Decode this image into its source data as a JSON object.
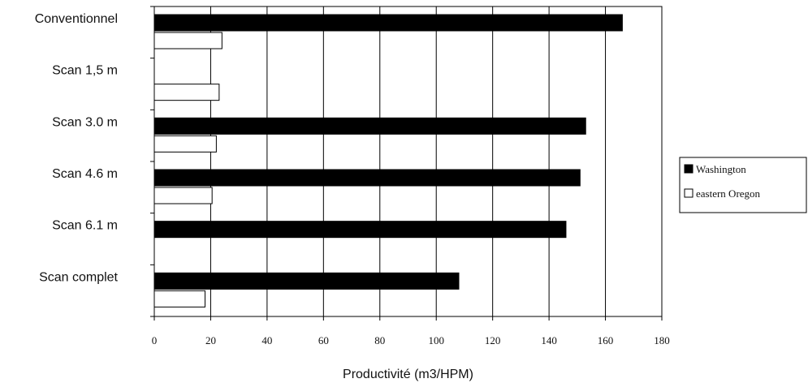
{
  "chart_data": {
    "type": "bar",
    "orientation": "horizontal",
    "categories": [
      "Conventionnel",
      "Scan 1,5 m",
      "Scan 3.0 m",
      "Scan 4.6 m",
      "Scan 6.1 m",
      "Scan complet"
    ],
    "series": [
      {
        "name": "Washington",
        "values": [
          166,
          null,
          153,
          151,
          146,
          108
        ],
        "color": "#000000"
      },
      {
        "name": "eastern Oregon",
        "values": [
          24,
          23,
          22,
          20.5,
          null,
          18
        ],
        "color": "#ffffff"
      }
    ],
    "xlabel": "Productivité (m3/HPM)",
    "xlim": [
      0,
      180
    ],
    "xticks": [
      "0",
      "20",
      "40",
      "60",
      "80",
      "100",
      "120",
      "140",
      "160",
      "180"
    ],
    "grid": "vertical",
    "legend": "right"
  },
  "colors": {
    "bar_outline": "#000000",
    "grid": "#000000",
    "background": "#ffffff"
  }
}
